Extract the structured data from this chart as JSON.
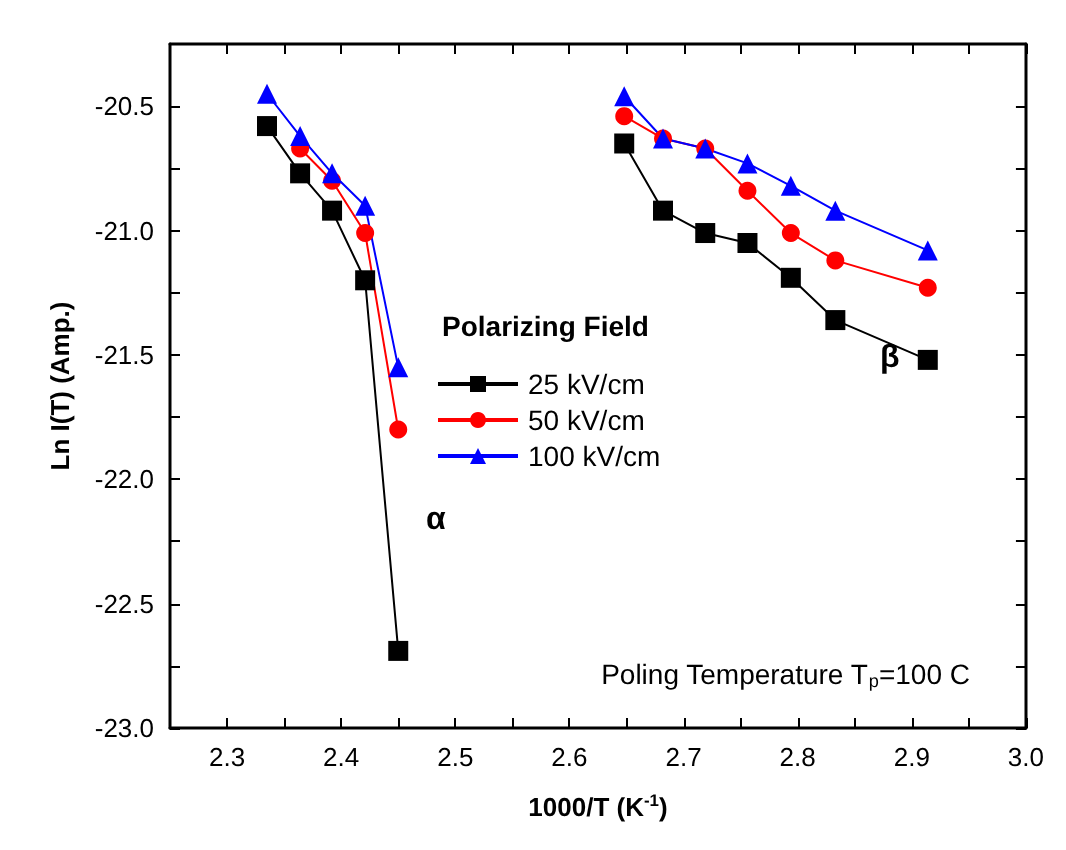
{
  "chart_data": {
    "type": "line",
    "xlabel": "1000/T (K$^{-1}$)",
    "ylabel": "Ln I(T) (Amp.)",
    "legend_title": "Polarizing Field",
    "legend": "center",
    "grid": false,
    "xlim": [
      2.25,
      3.0
    ],
    "ylim": [
      -23.0,
      -20.25
    ],
    "xticks": [
      {
        "value": 2.3,
        "label": "2.3"
      },
      {
        "value": 2.35,
        "label": null
      },
      {
        "value": 2.4,
        "label": "2.4"
      },
      {
        "value": 2.45,
        "label": null
      },
      {
        "value": 2.5,
        "label": "2.5"
      },
      {
        "value": 2.55,
        "label": null
      },
      {
        "value": 2.6,
        "label": "2.6"
      },
      {
        "value": 2.65,
        "label": null
      },
      {
        "value": 2.7,
        "label": "2.7"
      },
      {
        "value": 2.75,
        "label": null
      },
      {
        "value": 2.8,
        "label": "2.8"
      },
      {
        "value": 2.85,
        "label": null
      },
      {
        "value": 2.9,
        "label": "2.9"
      },
      {
        "value": 2.95,
        "label": null
      },
      {
        "value": 3.0,
        "label": "3.0"
      }
    ],
    "yticks": [
      {
        "value": -23.0,
        "label": "-23.0"
      },
      {
        "value": -22.75,
        "label": null
      },
      {
        "value": -22.5,
        "label": "-22.5"
      },
      {
        "value": -22.25,
        "label": null
      },
      {
        "value": -22.0,
        "label": "-22.0"
      },
      {
        "value": -21.75,
        "label": null
      },
      {
        "value": -21.5,
        "label": "-21.5"
      },
      {
        "value": -21.25,
        "label": null
      },
      {
        "value": -21.0,
        "label": "-21.0"
      },
      {
        "value": -20.75,
        "label": null
      },
      {
        "value": -20.5,
        "label": "-20.5"
      }
    ],
    "series": [
      {
        "name": "25 kV/cm",
        "color": "#000000",
        "marker": "square",
        "x": [
          2.335,
          2.364,
          2.392,
          2.421,
          2.45
        ],
        "values": [
          -20.58,
          -20.77,
          -20.92,
          -21.2,
          -22.69
        ]
      },
      {
        "name": "50 kV/cm",
        "color": "#ff0000",
        "marker": "circle",
        "x": [
          2.364,
          2.392,
          2.421,
          2.45
        ],
        "values": [
          -20.67,
          -20.8,
          -21.01,
          -21.8
        ]
      },
      {
        "name": "100 kV/cm",
        "color": "#0000ff",
        "marker": "triangle",
        "x": [
          2.335,
          2.364,
          2.392,
          2.421,
          2.45
        ],
        "values": [
          -20.45,
          -20.62,
          -20.77,
          -20.9,
          -21.55
        ]
      },
      {
        "color": "#000000",
        "marker": "square",
        "x": [
          2.648,
          2.682,
          2.719,
          2.756,
          2.794,
          2.833,
          2.914
        ],
        "values": [
          -20.65,
          -20.92,
          -21.01,
          -21.05,
          -21.19,
          -21.36,
          -21.52
        ]
      },
      {
        "color": "#ff0000",
        "marker": "circle",
        "x": [
          2.648,
          2.682,
          2.719,
          2.756,
          2.794,
          2.833,
          2.914
        ],
        "values": [
          -20.54,
          -20.63,
          -20.67,
          -20.84,
          -21.01,
          -21.12,
          -21.23
        ]
      },
      {
        "color": "#0000ff",
        "marker": "triangle",
        "x": [
          2.648,
          2.682,
          2.719,
          2.756,
          2.794,
          2.833,
          2.914
        ],
        "values": [
          -20.46,
          -20.63,
          -20.67,
          -20.73,
          -20.82,
          -20.92,
          -21.08
        ]
      }
    ],
    "annotations": [
      "α",
      "β",
      "Poling Temperature T$_{p}$=100 C"
    ]
  }
}
